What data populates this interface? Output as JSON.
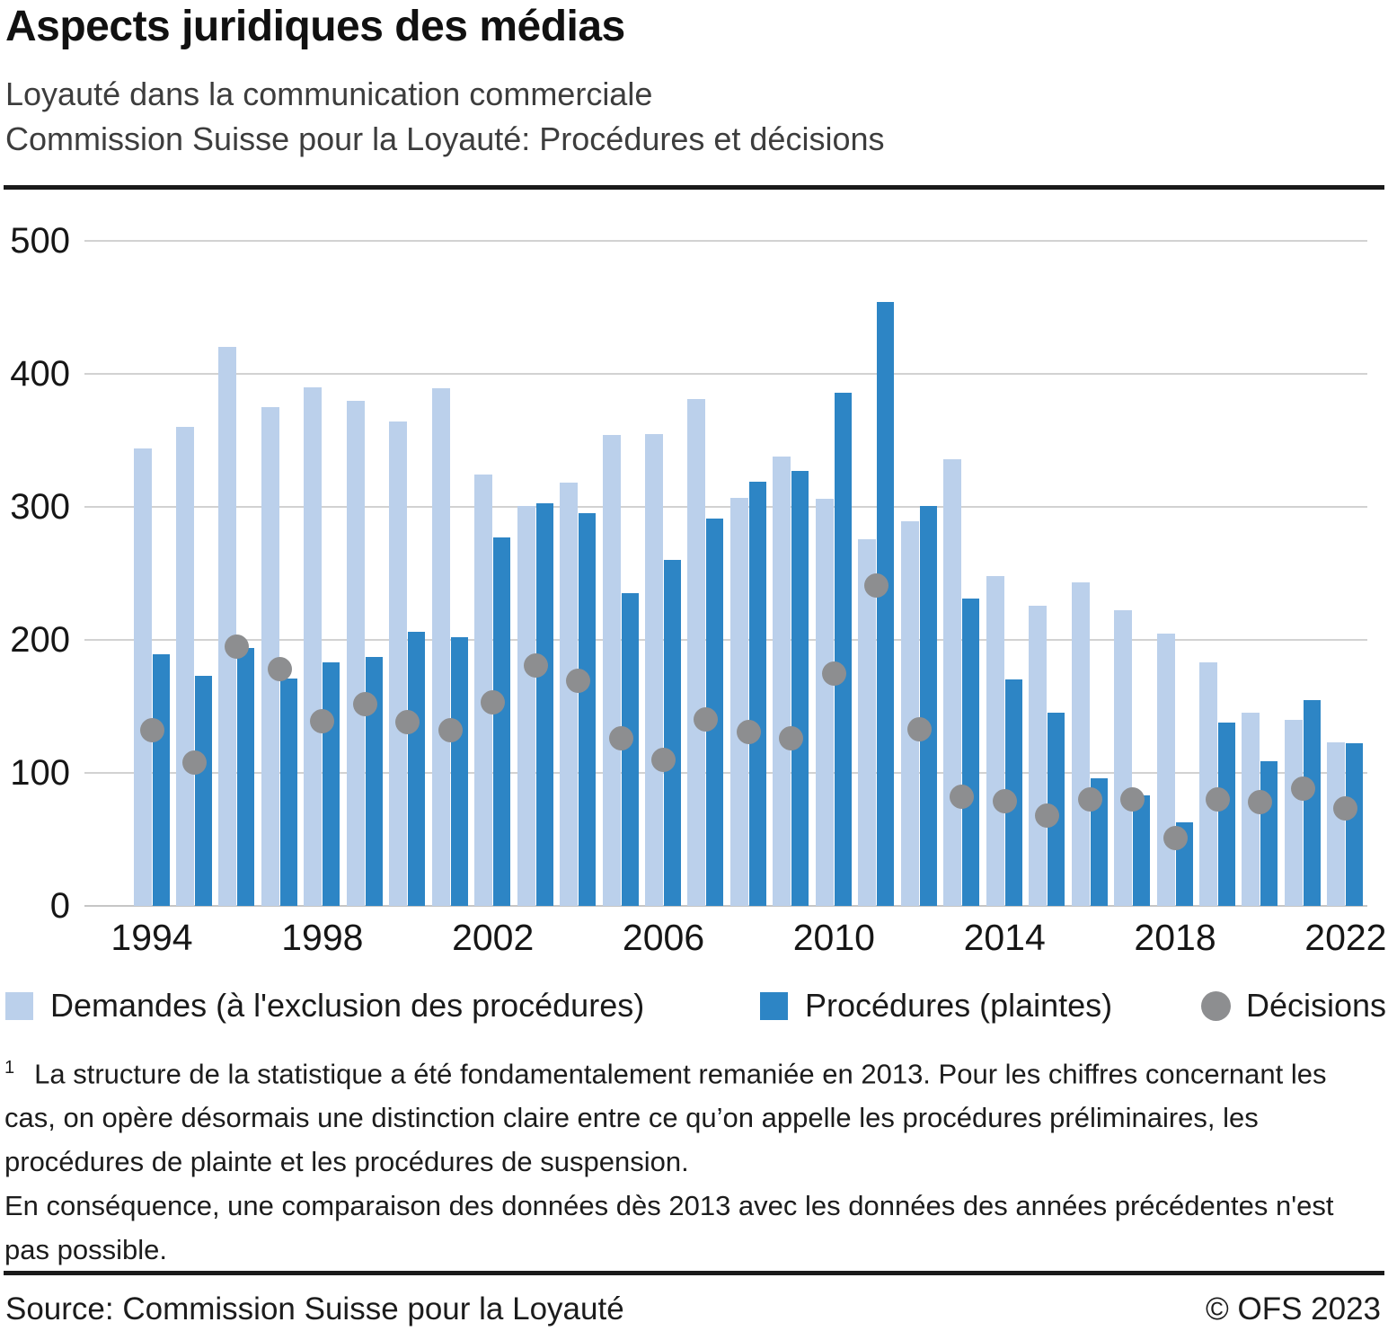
{
  "header": {
    "title": "Aspects juridiques des médias",
    "subtitle1": "Loyauté dans la communication commerciale",
    "subtitle2": "Commission Suisse pour la Loyauté: Procédures et décisions"
  },
  "chart_data": {
    "type": "bar",
    "title": "Commission Suisse pour la Loyauté: Procédures et décisions",
    "xlabel": "",
    "ylabel": "",
    "ylim": [
      0,
      500
    ],
    "yticks": [
      0,
      100,
      200,
      300,
      400,
      500
    ],
    "xticks": [
      1994,
      1998,
      2002,
      2006,
      2010,
      2014,
      2018,
      2022
    ],
    "grid": "horizontal",
    "legend_position": "bottom",
    "categories": [
      1994,
      1995,
      1996,
      1997,
      1998,
      1999,
      2000,
      2001,
      2002,
      2003,
      2004,
      2005,
      2006,
      2007,
      2008,
      2009,
      2010,
      2011,
      2012,
      2013,
      2014,
      2015,
      2016,
      2017,
      2018,
      2019,
      2020,
      2021,
      2022
    ],
    "series": [
      {
        "name": "Demandes (à l'exclusion des procédures)",
        "style": "bar",
        "color": "#bbd0eb",
        "values": [
          344,
          360,
          420,
          375,
          390,
          380,
          364,
          389,
          324,
          301,
          318,
          354,
          355,
          381,
          307,
          338,
          306,
          276,
          289,
          336,
          248,
          226,
          243,
          222,
          205,
          183,
          145,
          140,
          123
        ]
      },
      {
        "name": "Procédures (plaintes)",
        "style": "bar",
        "color": "#2d85c5",
        "values": [
          189,
          173,
          194,
          171,
          183,
          187,
          206,
          202,
          277,
          303,
          295,
          235,
          260,
          291,
          319,
          327,
          386,
          454,
          301,
          231,
          170,
          145,
          96,
          83,
          63,
          138,
          109,
          155,
          122
        ]
      },
      {
        "name": "Décisions",
        "style": "dot",
        "color": "#8d8e90",
        "values": [
          132,
          108,
          195,
          178,
          139,
          152,
          138,
          132,
          153,
          181,
          169,
          126,
          110,
          140,
          131,
          126,
          175,
          241,
          133,
          82,
          79,
          68,
          80,
          80,
          51,
          80,
          78,
          88,
          73
        ]
      }
    ]
  },
  "footnote": {
    "marker": "1",
    "text1": "La structure de la statistique a été fondamentalement remaniée en 2013. Pour les chiffres concernant les cas, on opère désormais une distinction claire entre ce qu’on appelle les procédures préliminaires, les procédures de plainte et les procédures de suspension.",
    "text2": "En conséquence, une comparaison des données dès 2013 avec les données des années précédentes n'est pas possible."
  },
  "footer": {
    "source": "Source: Commission Suisse pour la Loyauté",
    "copyright": "© OFS 2023"
  }
}
